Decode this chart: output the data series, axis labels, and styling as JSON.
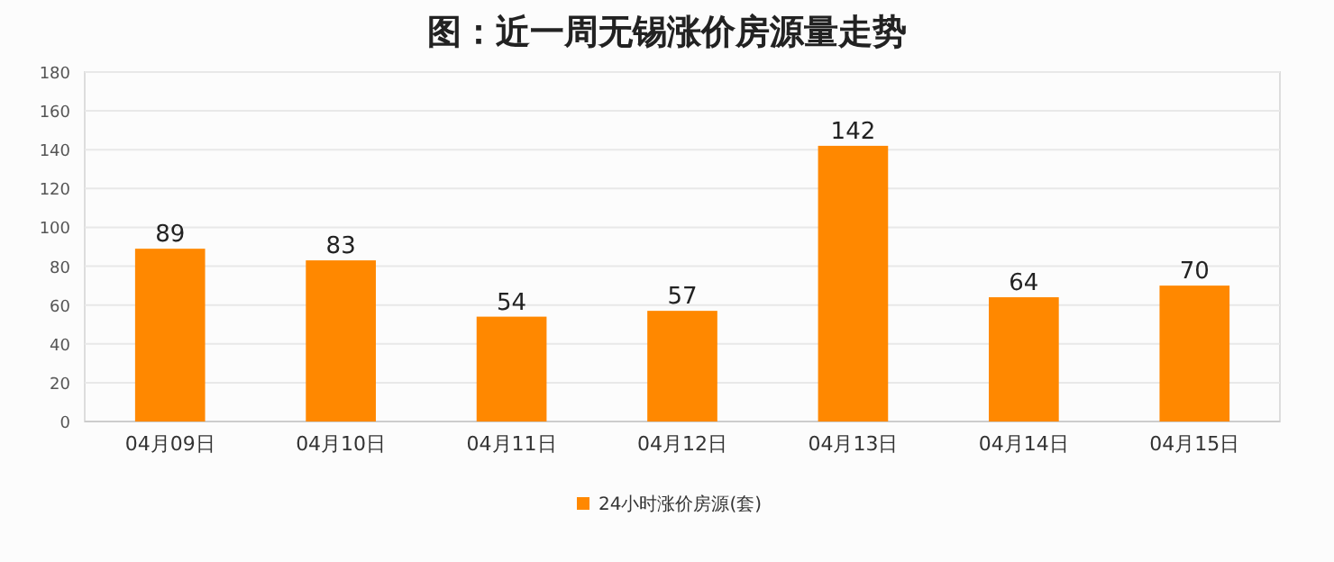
{
  "chart_data": {
    "type": "bar",
    "title": "图：近一周无锡涨价房源量走势",
    "categories": [
      "04月09日",
      "04月10日",
      "04月11日",
      "04月12日",
      "04月13日",
      "04月14日",
      "04月15日"
    ],
    "series": [
      {
        "name": "24小时涨价房源(套)",
        "color": "#ff8800",
        "values": [
          89,
          83,
          54,
          57,
          142,
          64,
          70
        ]
      }
    ],
    "ylim": [
      0,
      180
    ],
    "yticks": [
      0,
      20,
      40,
      60,
      80,
      100,
      120,
      140,
      160,
      180
    ],
    "grid": "y",
    "legend": "bottom",
    "data_labels": true
  }
}
